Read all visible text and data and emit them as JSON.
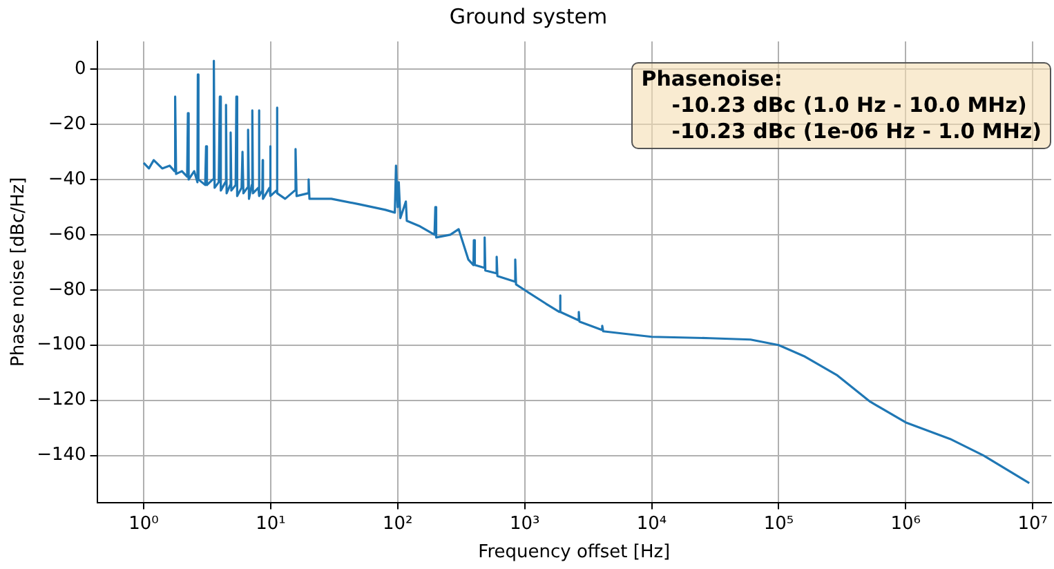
{
  "chart_data": {
    "type": "line",
    "title": "Ground system",
    "xlabel": "Frequency offset [Hz]",
    "ylabel": "Phase noise [dBc/Hz]",
    "log": "x",
    "grid": true,
    "legend": false,
    "marker": "none",
    "line_style": "solid",
    "xlim": [
      0.43,
      14000000
    ],
    "ylim": [
      -157,
      10
    ],
    "xticks": [
      {
        "value": 1,
        "label": "10⁰"
      },
      {
        "value": 10,
        "label": "10¹"
      },
      {
        "value": 100,
        "label": "10²"
      },
      {
        "value": 1000,
        "label": "10³"
      },
      {
        "value": 10000,
        "label": "10⁴"
      },
      {
        "value": 100000,
        "label": "10⁵"
      },
      {
        "value": 1000000,
        "label": "10⁶"
      },
      {
        "value": 10000000,
        "label": "10⁷"
      }
    ],
    "yticks": [
      -140,
      -120,
      -100,
      -80,
      -60,
      -40,
      -20,
      0
    ],
    "annotations": [
      "Phasenoise:",
      "-10.23 dBc (1.0 Hz - 10.0 MHz)",
      "-10.23 dBc (1e-06 Hz - 1.0 MHz)"
    ],
    "series": [
      {
        "color": "#1f77b4",
        "x": [
          1,
          1.1,
          1.2,
          1.4,
          1.6,
          1.75,
          1.77,
          1.8,
          2.0,
          2.2,
          2.23,
          2.26,
          2.5,
          2.65,
          2.67,
          2.7,
          3.05,
          3.1,
          3.15,
          3.5,
          3.57,
          3.62,
          3.9,
          3.98,
          4.05,
          4.4,
          4.45,
          4.5,
          4.8,
          4.84,
          4.9,
          5.3,
          5.37,
          5.45,
          5.9,
          6.0,
          6.1,
          6.55,
          6.64,
          6.75,
          7.1,
          7.17,
          7.25,
          8.0,
          8.08,
          8.15,
          8.6,
          8.65,
          8.7,
          9.8,
          9.9,
          10,
          11.1,
          11.2,
          11.3,
          13,
          15.5,
          15.7,
          16,
          19.7,
          19.9,
          20.2,
          30,
          50,
          80,
          95,
          97,
          100,
          102,
          105,
          116,
          118,
          150,
          195,
          198,
          201,
          260,
          302,
          360,
          395,
          398,
          405,
          480,
          484,
          490,
          598,
          602,
          610,
          835,
          843,
          855,
          1035,
          1470,
          1880,
          1895,
          1920,
          2650,
          2668,
          2700,
          4050,
          4080,
          4150,
          8000,
          10000,
          28800,
          60000,
          100000,
          158000,
          290000,
          525000,
          1000000,
          2240000,
          4100000,
          9400000
        ],
        "values": [
          -34,
          -36,
          -33,
          -36,
          -35,
          -37,
          -10,
          -38,
          -37,
          -39,
          -16,
          -40,
          -37,
          -41,
          -2,
          -40,
          -42,
          -28,
          -42,
          -40,
          3,
          -43,
          -41,
          -10,
          -44,
          -41,
          -13,
          -45,
          -42,
          -23,
          -44,
          -42,
          -10,
          -46,
          -43,
          -30,
          -45,
          -43,
          -22,
          -47,
          -42,
          -15,
          -45,
          -43,
          -15,
          -46,
          -44,
          -33,
          -47,
          -43,
          -28,
          -46,
          -44,
          -14,
          -45,
          -47,
          -44,
          -29,
          -46,
          -45,
          -40,
          -47,
          -47,
          -49,
          -51,
          -52,
          -35,
          -50,
          -41,
          -54,
          -48,
          -55,
          -57,
          -60,
          -50,
          -61,
          -60,
          -58,
          -69,
          -71,
          -62,
          -71,
          -72,
          -61,
          -73,
          -74,
          -68,
          -75,
          -77,
          -69,
          -78,
          -80.5,
          -85,
          -88,
          -82,
          -88,
          -91,
          -88,
          -91.5,
          -94.5,
          -93,
          -95,
          -96.5,
          -97,
          -97.5,
          -98,
          -100,
          -104,
          -111,
          -120.5,
          -128,
          -134,
          -140,
          -150
        ]
      }
    ]
  }
}
